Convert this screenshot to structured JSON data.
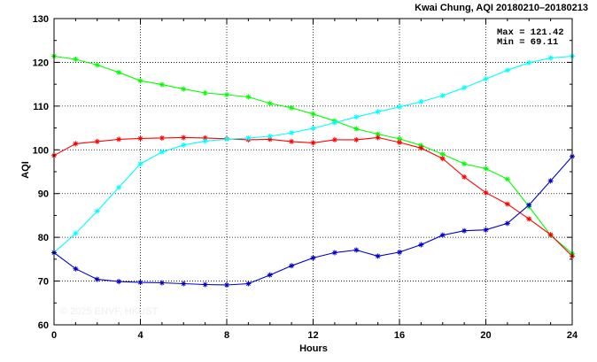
{
  "chart_data": {
    "type": "line",
    "title": "Kwai Chung, AQI 20180210–20180213",
    "xlabel": "Hours",
    "ylabel": "AQI",
    "xlim": [
      0,
      24
    ],
    "ylim": [
      60,
      130
    ],
    "xticks": [
      0,
      4,
      8,
      12,
      16,
      20,
      24
    ],
    "yticks": [
      60,
      70,
      80,
      90,
      100,
      110,
      120,
      130
    ],
    "grid": true,
    "stats": {
      "max_label": "Max = 121.42",
      "min_label": "Min =  69.11"
    },
    "watermark": "© 2025  ENVF, HKUST",
    "x": [
      0,
      1,
      2,
      3,
      4,
      5,
      6,
      7,
      8,
      9,
      10,
      11,
      12,
      13,
      14,
      15,
      16,
      17,
      18,
      19,
      20,
      21,
      22,
      23,
      24
    ],
    "series": [
      {
        "color": "#00ff00",
        "values": [
          121.4,
          120.7,
          119.4,
          117.7,
          115.8,
          114.9,
          113.9,
          113.0,
          112.6,
          112.1,
          110.6,
          109.6,
          108.2,
          106.6,
          104.8,
          103.6,
          102.5,
          101.0,
          99.0,
          96.8,
          95.7,
          93.3,
          87.0,
          80.5,
          76.3
        ]
      },
      {
        "color": "#ff0000",
        "values": [
          98.7,
          101.4,
          101.9,
          102.4,
          102.6,
          102.7,
          102.8,
          102.7,
          102.5,
          102.3,
          102.4,
          101.9,
          101.6,
          102.3,
          102.3,
          102.8,
          101.7,
          100.4,
          98.0,
          93.8,
          90.2,
          87.6,
          84.2,
          80.6,
          75.7
        ]
      },
      {
        "color": "#00ffff",
        "values": [
          76.5,
          80.9,
          86.0,
          91.4,
          96.8,
          99.5,
          101.1,
          102.0,
          102.4,
          102.7,
          103.1,
          103.9,
          104.9,
          106.2,
          107.5,
          108.7,
          109.8,
          111.0,
          112.4,
          114.2,
          116.2,
          118.2,
          119.9,
          121.0,
          121.4
        ]
      },
      {
        "color": "#0000cc",
        "values": [
          76.5,
          72.8,
          70.4,
          69.9,
          69.7,
          69.6,
          69.4,
          69.2,
          69.1,
          69.4,
          71.4,
          73.5,
          75.3,
          76.5,
          77.1,
          75.7,
          76.6,
          78.3,
          80.5,
          81.5,
          81.7,
          83.2,
          87.4,
          92.9,
          98.5
        ]
      }
    ]
  }
}
